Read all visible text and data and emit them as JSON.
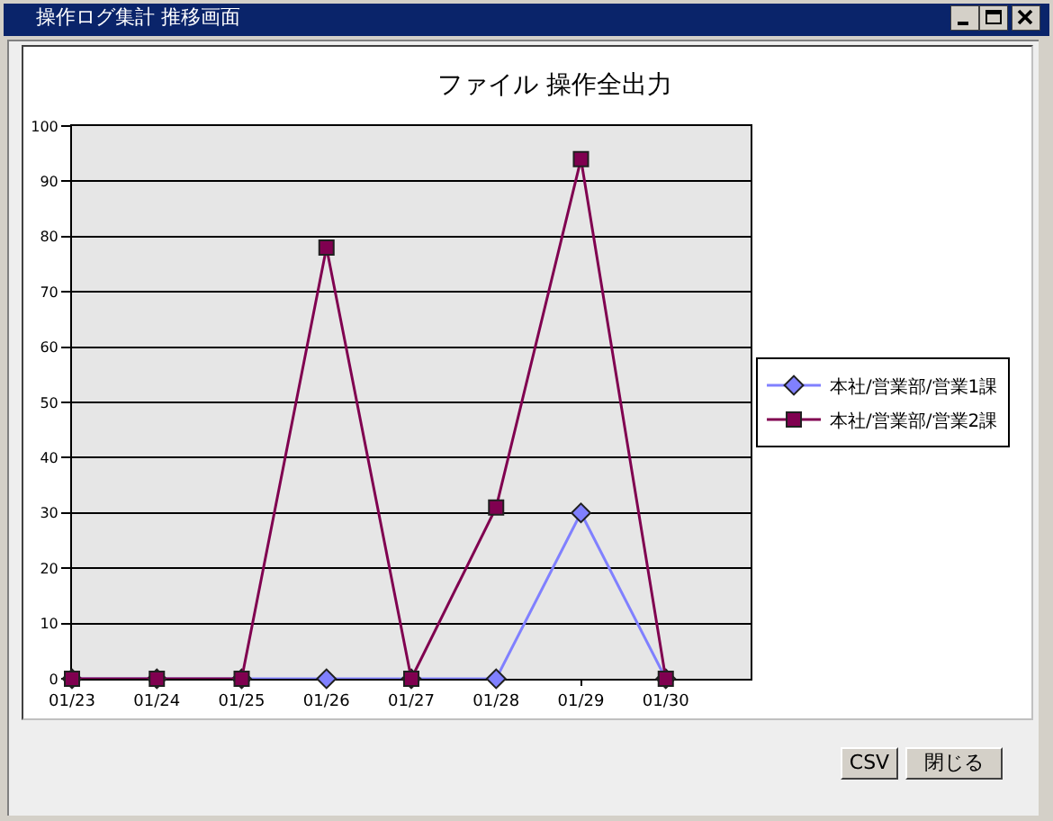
{
  "chart_data": {
    "type": "line",
    "title": "ファイル 操作全出力",
    "categories": [
      "01/23",
      "01/24",
      "01/25",
      "01/26",
      "01/27",
      "01/28",
      "01/29",
      "01/30"
    ],
    "series": [
      {
        "name": "本社/営業部/営業1課",
        "color": "#8080ff",
        "marker": "diamond",
        "values": [
          0,
          0,
          0,
          0,
          0,
          0,
          30,
          0
        ]
      },
      {
        "name": "本社/営業部/営業2課",
        "color": "#800050",
        "marker": "square",
        "values": [
          0,
          0,
          0,
          78,
          0,
          31,
          94,
          0
        ]
      }
    ],
    "ylim": [
      0,
      100
    ],
    "yticks": [
      0,
      10,
      20,
      30,
      40,
      50,
      60,
      70,
      80,
      90,
      100
    ],
    "grid": "y",
    "legend": "right",
    "line_style": "solid",
    "annotations": [
      "操作ログ集計 推移画面",
      "CSV",
      "閉じる"
    ]
  }
}
